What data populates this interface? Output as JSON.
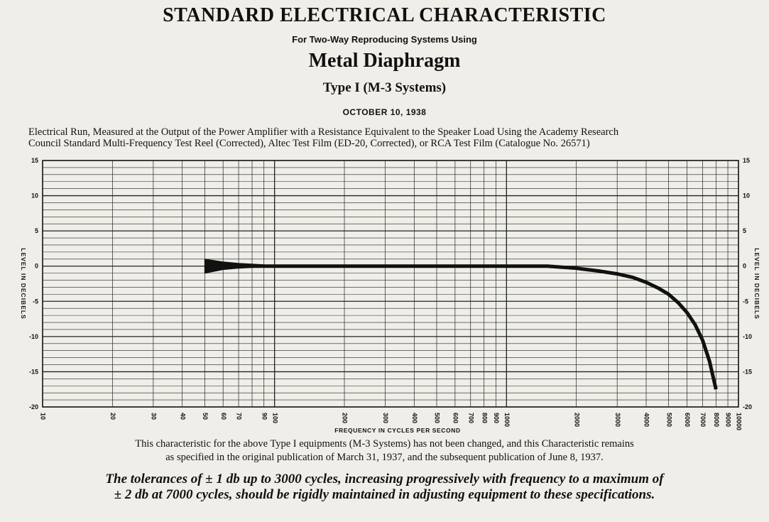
{
  "header": {
    "title": "STANDARD ELECTRICAL CHARACTERISTIC",
    "subtitle": "For Two-Way Reproducing Systems Using",
    "heading": "Metal Diaphragm",
    "type_line": "Type I (M-3 Systems)",
    "date": "OCTOBER 10, 1938"
  },
  "description": {
    "line1": "Electrical Run, Measured at the Output of the Power Amplifier with a Resistance Equivalent to the Speaker Load Using the Academy Research",
    "line2": "Council Standard Multi-Frequency Test Reel (Corrected), Altec Test Film (ED-20, Corrected), or RCA Test Film (Catalogue No. 26571)"
  },
  "footer": {
    "note_line1": "This characteristic for the above Type I equipments (M-3 Systems) has not been changed, and this Characteristic remains",
    "note_line2": "as specified in the original publication of March 31, 1937, and the subsequent publication of June 8, 1937.",
    "tolerance_line1": "The tolerances of ± 1 db up to 3000 cycles, increasing progressively with frequency to a maximum of",
    "tolerance_line2": "± 2 db at 7000 cycles, should be rigidly maintained in adjusting equipment to these specifications."
  },
  "chart_data": {
    "type": "line",
    "xlabel": "FREQUENCY IN CYCLES PER SECOND",
    "ylabel": "LEVEL IN DECIBELS",
    "x_scale": "log",
    "xlim": [
      10,
      10000
    ],
    "ylim": [
      -20,
      15
    ],
    "grid": true,
    "x_ticks": [
      10,
      20,
      30,
      40,
      50,
      60,
      70,
      90,
      100,
      200,
      300,
      400,
      500,
      600,
      700,
      800,
      900,
      1000,
      2000,
      3000,
      4000,
      5000,
      6000,
      7000,
      8000,
      9000,
      10000
    ],
    "x_tick_labels": [
      "10",
      "20",
      "30",
      "40",
      "50",
      "60",
      "70",
      "90",
      "100",
      "200",
      "300",
      "400",
      "500",
      "600",
      "700",
      "800",
      "900",
      "1000",
      "2000",
      "3000",
      "4000",
      "5000",
      "6000",
      "7000",
      "8000",
      "9000",
      "10000"
    ],
    "y_ticks": [
      15,
      10,
      5,
      0,
      -5,
      -10,
      -15,
      -20
    ],
    "y_tick_labels": [
      "15",
      "10",
      "5",
      "0",
      "-5",
      "-10",
      "-15",
      "-20"
    ],
    "series": [
      {
        "x": [
          50,
          100,
          200,
          500,
          1000,
          1500,
          2000,
          2500,
          3000,
          3500,
          4000,
          4500,
          5000,
          5500,
          6000,
          6500,
          7000,
          7500,
          8000
        ],
        "y": [
          0,
          0,
          0,
          0,
          0,
          0,
          -0.3,
          -0.7,
          -1.1,
          -1.6,
          -2.3,
          -3.1,
          -4.0,
          -5.2,
          -6.6,
          -8.3,
          -10.5,
          -13.5,
          -17.5
        ]
      }
    ],
    "tolerance_band": {
      "x": [
        50,
        60,
        70,
        90
      ],
      "upper": [
        1.0,
        0.6,
        0.4,
        0.2
      ],
      "lower": [
        -1.0,
        -0.5,
        -0.3,
        -0.1
      ]
    }
  }
}
